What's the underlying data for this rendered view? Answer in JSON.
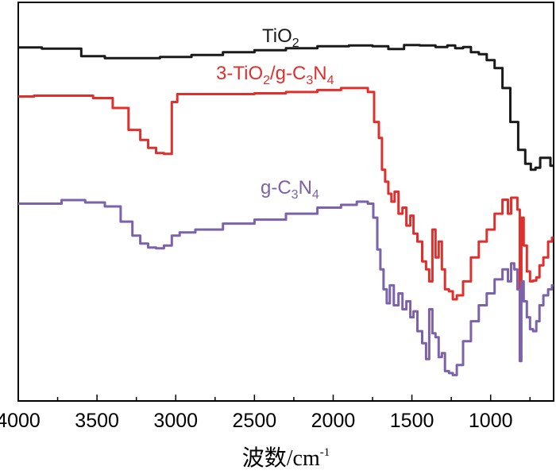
{
  "chart_data": {
    "type": "line",
    "title": "",
    "xlabel": "波数/cm",
    "xlabel_sup": "-1",
    "ylabel": "",
    "xlim": [
      4000,
      600
    ],
    "x_reversed": true,
    "ylim": [
      0,
      100
    ],
    "y_ticks_shown": false,
    "ticks": [
      4000,
      3500,
      3000,
      2500,
      2000,
      1500,
      1000
    ],
    "tick_labels": [
      "4000",
      "3500",
      "3000",
      "2500",
      "2000",
      "1500",
      "1000"
    ],
    "series": [
      {
        "name": "TiO2",
        "label_parts": [
          [
            "TiO",
            ""
          ],
          [
            "2",
            "sub"
          ]
        ],
        "color": "#1a1a1a",
        "x": [
          4000,
          3700,
          3500,
          3400,
          3300,
          3200,
          3000,
          2800,
          2600,
          2400,
          2200,
          2000,
          1800,
          1700,
          1600,
          1500,
          1400,
          1300,
          1250,
          1200,
          1150,
          1100,
          1050,
          1000,
          950,
          900,
          850,
          800,
          760,
          730,
          700,
          670,
          640,
          600
        ],
        "values": [
          88.7,
          88.4,
          86.5,
          86.0,
          86.0,
          86.0,
          86.3,
          86.8,
          87.5,
          88.0,
          88.5,
          89.0,
          89.2,
          89.0,
          88.3,
          89.3,
          89.2,
          88.8,
          89.2,
          88.5,
          88.8,
          87.5,
          87.0,
          85.5,
          83.5,
          78.5,
          70.0,
          63.0,
          59.5,
          58.0,
          58.5,
          61.0,
          61.0,
          59.0
        ]
      },
      {
        "name": "3-TiO2/g-C3N4",
        "label_parts": [
          [
            "3-TiO",
            ""
          ],
          [
            "2",
            "sub"
          ],
          [
            "/g-C",
            ""
          ],
          [
            "3",
            "sub"
          ],
          [
            "N",
            ""
          ],
          [
            "4",
            "sub"
          ]
        ],
        "color": "#e0302d",
        "x": [
          4000,
          3800,
          3600,
          3450,
          3350,
          3250,
          3200,
          3150,
          3100,
          3050,
          3000,
          2980,
          2800,
          2600,
          2400,
          2200,
          2000,
          1900,
          1800,
          1760,
          1720,
          1700,
          1680,
          1660,
          1640,
          1620,
          1600,
          1570,
          1550,
          1520,
          1500,
          1480,
          1450,
          1420,
          1400,
          1380,
          1360,
          1340,
          1320,
          1300,
          1280,
          1250,
          1230,
          1200,
          1150,
          1100,
          1050,
          1000,
          950,
          900,
          880,
          860,
          840,
          820,
          810,
          800,
          780,
          760,
          740,
          720,
          700,
          680,
          650,
          620,
          600
        ],
        "values": [
          76.4,
          76.6,
          76.6,
          76.0,
          73.5,
          68.0,
          65.5,
          63.5,
          62.2,
          62.0,
          75.0,
          77.0,
          77.0,
          77.0,
          77.2,
          77.5,
          78.0,
          78.5,
          78.5,
          77.5,
          70.0,
          66.0,
          58.0,
          55.0,
          52.0,
          50.0,
          52.5,
          47.0,
          48.5,
          44.0,
          46.5,
          42.0,
          40.0,
          35.0,
          33.0,
          30.0,
          43.0,
          36.0,
          40.0,
          33.0,
          28.0,
          27.5,
          25.5,
          26.5,
          30.0,
          36.0,
          40.0,
          43.0,
          47.0,
          50.5,
          47.0,
          51.0,
          51.0,
          48.0,
          28.0,
          46.0,
          39.0,
          32.5,
          30.0,
          30.2,
          31.0,
          34.0,
          36.0,
          40.0,
          41.0
        ]
      },
      {
        "name": "g-C3N4",
        "label_parts": [
          [
            "g-C",
            ""
          ],
          [
            "3",
            "sub"
          ],
          [
            "N",
            ""
          ],
          [
            "4",
            "sub"
          ]
        ],
        "color": "#7b62ab",
        "x": [
          4000,
          3800,
          3650,
          3500,
          3400,
          3300,
          3250,
          3200,
          3150,
          3100,
          3050,
          3000,
          2950,
          2800,
          2600,
          2400,
          2200,
          2000,
          1900,
          1800,
          1760,
          1730,
          1710,
          1690,
          1670,
          1650,
          1630,
          1600,
          1570,
          1550,
          1520,
          1500,
          1480,
          1450,
          1420,
          1400,
          1380,
          1360,
          1340,
          1320,
          1300,
          1280,
          1250,
          1230,
          1200,
          1150,
          1100,
          1050,
          1000,
          950,
          900,
          880,
          860,
          840,
          820,
          810,
          800,
          780,
          760,
          740,
          720,
          700,
          680,
          650,
          620,
          600
        ],
        "values": [
          49.5,
          49.5,
          50.4,
          49.8,
          48.8,
          45.0,
          41.5,
          39.5,
          38.5,
          38.3,
          39.0,
          41.5,
          42.3,
          43.0,
          44.5,
          45.5,
          47.0,
          48.5,
          49.2,
          50.0,
          49.5,
          46.0,
          38.0,
          33.0,
          28.0,
          24.5,
          29.0,
          24.0,
          27.0,
          23.0,
          25.0,
          21.0,
          22.5,
          17.5,
          14.5,
          10.5,
          23.0,
          17.0,
          16.0,
          11.0,
          12.0,
          7.5,
          7.0,
          6.5,
          9.0,
          15.0,
          20.0,
          24.0,
          27.0,
          30.5,
          33.0,
          30.0,
          34.5,
          33.0,
          28.0,
          10.0,
          30.0,
          25.0,
          21.0,
          18.0,
          17.5,
          20.0,
          24.0,
          26.5,
          28.0,
          29.0
        ]
      }
    ]
  }
}
